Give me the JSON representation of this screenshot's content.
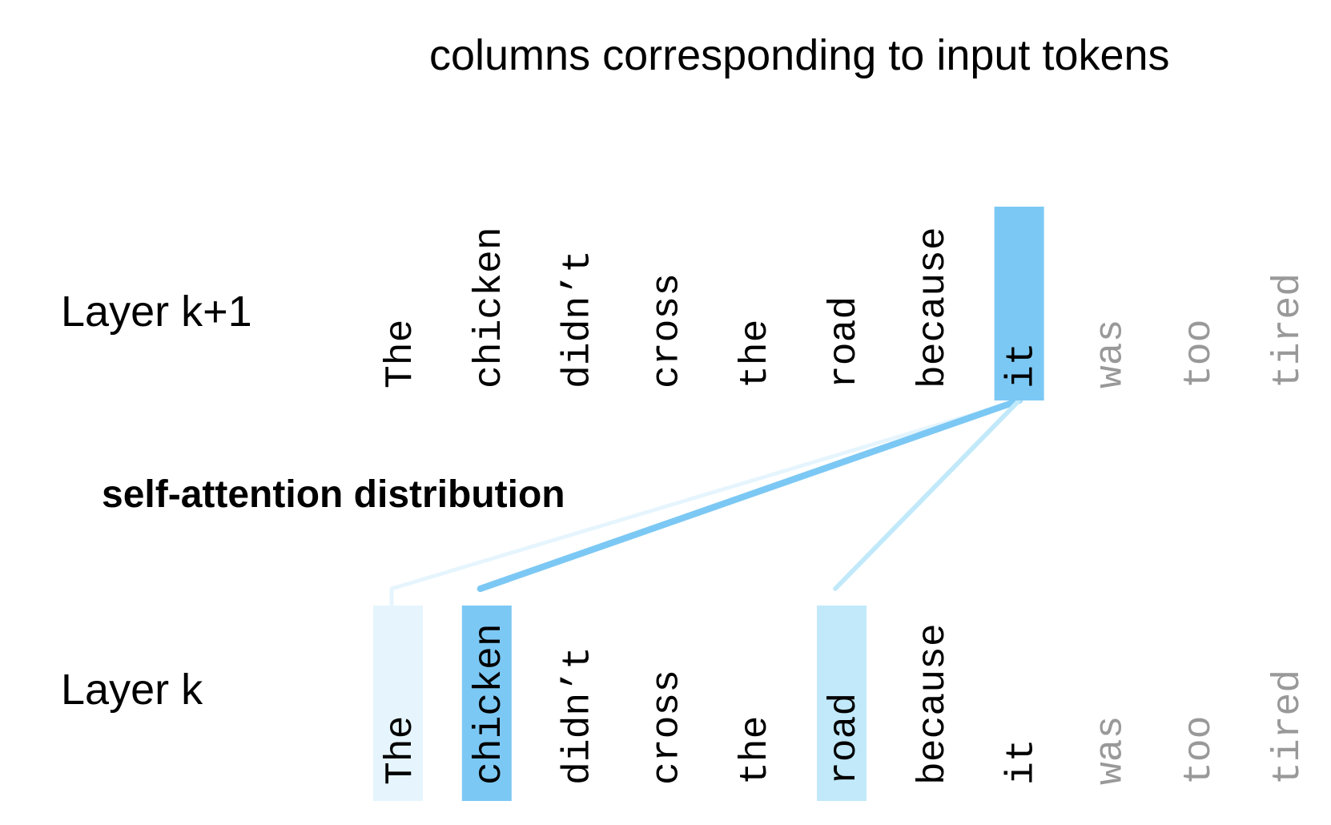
{
  "title": "columns corresponding to input tokens",
  "upper_layer_label": "Layer k+1",
  "lower_layer_label": "Layer k",
  "attention_label": "self-attention distribution",
  "tokens": [
    "The",
    "chicken",
    "didn’t",
    "cross",
    "the",
    "road",
    "because",
    "it",
    "was",
    "too",
    "tired"
  ],
  "future_tokens": [
    8,
    9,
    10
  ],
  "query_token_index": 7,
  "attention": [
    {
      "token_index": 0,
      "weight": 0.15,
      "color": "#e6f5fd"
    },
    {
      "token_index": 1,
      "weight": 0.7,
      "color": "#7cc8f4"
    },
    {
      "token_index": 5,
      "weight": 0.3,
      "color": "#c1e9fa"
    }
  ],
  "colors": {
    "query_highlight": "#7cc8f4",
    "text": "#000000",
    "future_text": "#999999"
  }
}
